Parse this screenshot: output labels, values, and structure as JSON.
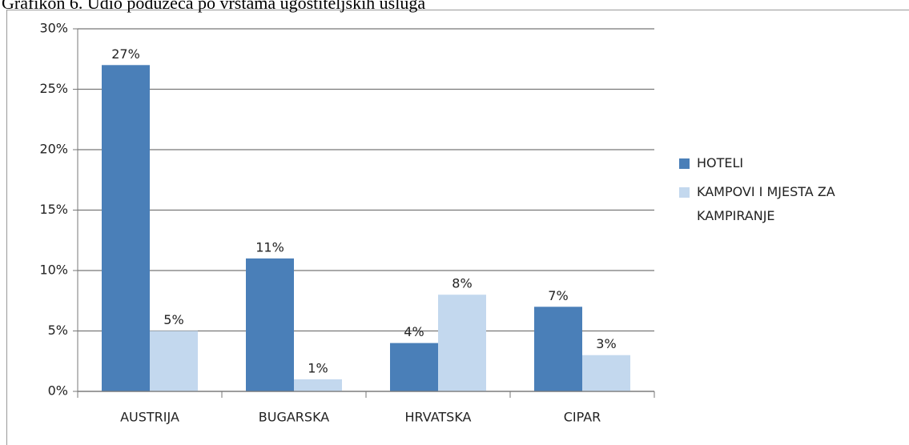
{
  "chart_data": {
    "type": "bar",
    "title": "Grafikon 6. Udio poduzeća po vrstama ugostiteljskih usluga",
    "categories": [
      "AUSTRIJA",
      "BUGARSKA",
      "HRVATSKA",
      "CIPAR"
    ],
    "series": [
      {
        "name": "HOTELI",
        "color": "#4a7fb8",
        "values": [
          27,
          11,
          4,
          7
        ],
        "value_labels": [
          "27%",
          "11%",
          "4%",
          "7%"
        ]
      },
      {
        "name": "KAMPOVI I MJESTA ZA KAMPIRANJE",
        "color": "#c3d8ee",
        "values": [
          5,
          1,
          8,
          3
        ],
        "value_labels": [
          "5%",
          "1%",
          "8%",
          "3%"
        ]
      }
    ],
    "ylim": [
      0,
      30
    ],
    "yticks": [
      {
        "value": 0,
        "label": "0%"
      },
      {
        "value": 5,
        "label": "5%"
      },
      {
        "value": 10,
        "label": "10%"
      },
      {
        "value": 15,
        "label": "15%"
      },
      {
        "value": 20,
        "label": "20%"
      },
      {
        "value": 25,
        "label": "25%"
      },
      {
        "value": 30,
        "label": "30%"
      }
    ],
    "grid": true,
    "legend": "right"
  }
}
